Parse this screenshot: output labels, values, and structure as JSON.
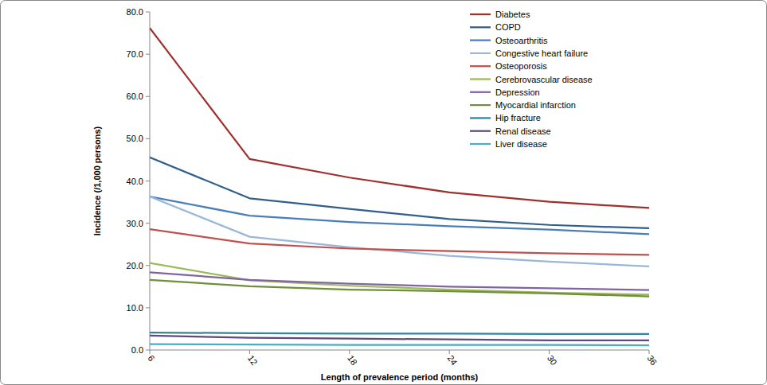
{
  "chart_data": {
    "type": "line",
    "x_label": "Length of prevalence period (months)",
    "y_label": "Incidence (/1,000 persons)",
    "categories": [
      "6",
      "12",
      "18",
      "24",
      "30",
      "36"
    ],
    "ylim": [
      0,
      80
    ],
    "yticks": [
      {
        "value": 0,
        "label": "0.0"
      },
      {
        "value": 10,
        "label": "10.0"
      },
      {
        "value": 20,
        "label": "20.0"
      },
      {
        "value": 30,
        "label": "30.0"
      },
      {
        "value": 40,
        "label": "40.0"
      },
      {
        "value": 50,
        "label": "50.0"
      },
      {
        "value": 60,
        "label": "60.0"
      },
      {
        "value": 70,
        "label": "70.0"
      },
      {
        "value": 80,
        "label": "80.0"
      }
    ],
    "grid": false,
    "legend": "upper right",
    "series": [
      {
        "name": "Diabetes",
        "color": "#a0302d",
        "values": [
          76.2,
          45.2,
          40.8,
          37.3,
          35.1,
          33.6
        ]
      },
      {
        "name": "COPD",
        "color": "#2f5f8a",
        "values": [
          45.6,
          35.9,
          33.4,
          31.0,
          29.6,
          28.8
        ]
      },
      {
        "name": "Osteoarthritis",
        "color": "#4a7ebb",
        "values": [
          36.3,
          31.8,
          30.3,
          29.3,
          28.5,
          27.4
        ]
      },
      {
        "name": "Congestive heart failure",
        "color": "#9ab7da",
        "values": [
          36.3,
          26.8,
          24.3,
          22.3,
          20.9,
          19.8
        ]
      },
      {
        "name": "Osteoporosis",
        "color": "#c0504d",
        "values": [
          28.6,
          25.2,
          24.0,
          23.4,
          22.9,
          22.5
        ]
      },
      {
        "name": "Cerebrovascular disease",
        "color": "#9bbb59",
        "values": [
          20.6,
          16.5,
          15.2,
          14.3,
          13.6,
          13.1
        ]
      },
      {
        "name": "Depression",
        "color": "#8064a2",
        "values": [
          18.4,
          16.6,
          15.7,
          15.0,
          14.6,
          14.2
        ]
      },
      {
        "name": "Myocardial infarction",
        "color": "#6f8f3a",
        "values": [
          16.6,
          15.1,
          14.3,
          13.9,
          13.4,
          12.7
        ]
      },
      {
        "name": "Hip fracture",
        "color": "#31859c",
        "values": [
          4.1,
          4.0,
          3.9,
          3.9,
          3.8,
          3.8
        ]
      },
      {
        "name": "Renal disease",
        "color": "#5f4a7d",
        "values": [
          3.4,
          2.9,
          2.7,
          2.5,
          2.3,
          2.3
        ]
      },
      {
        "name": "Liver disease",
        "color": "#4bacc6",
        "values": [
          1.4,
          1.3,
          1.2,
          1.2,
          1.2,
          1.1
        ]
      }
    ]
  }
}
